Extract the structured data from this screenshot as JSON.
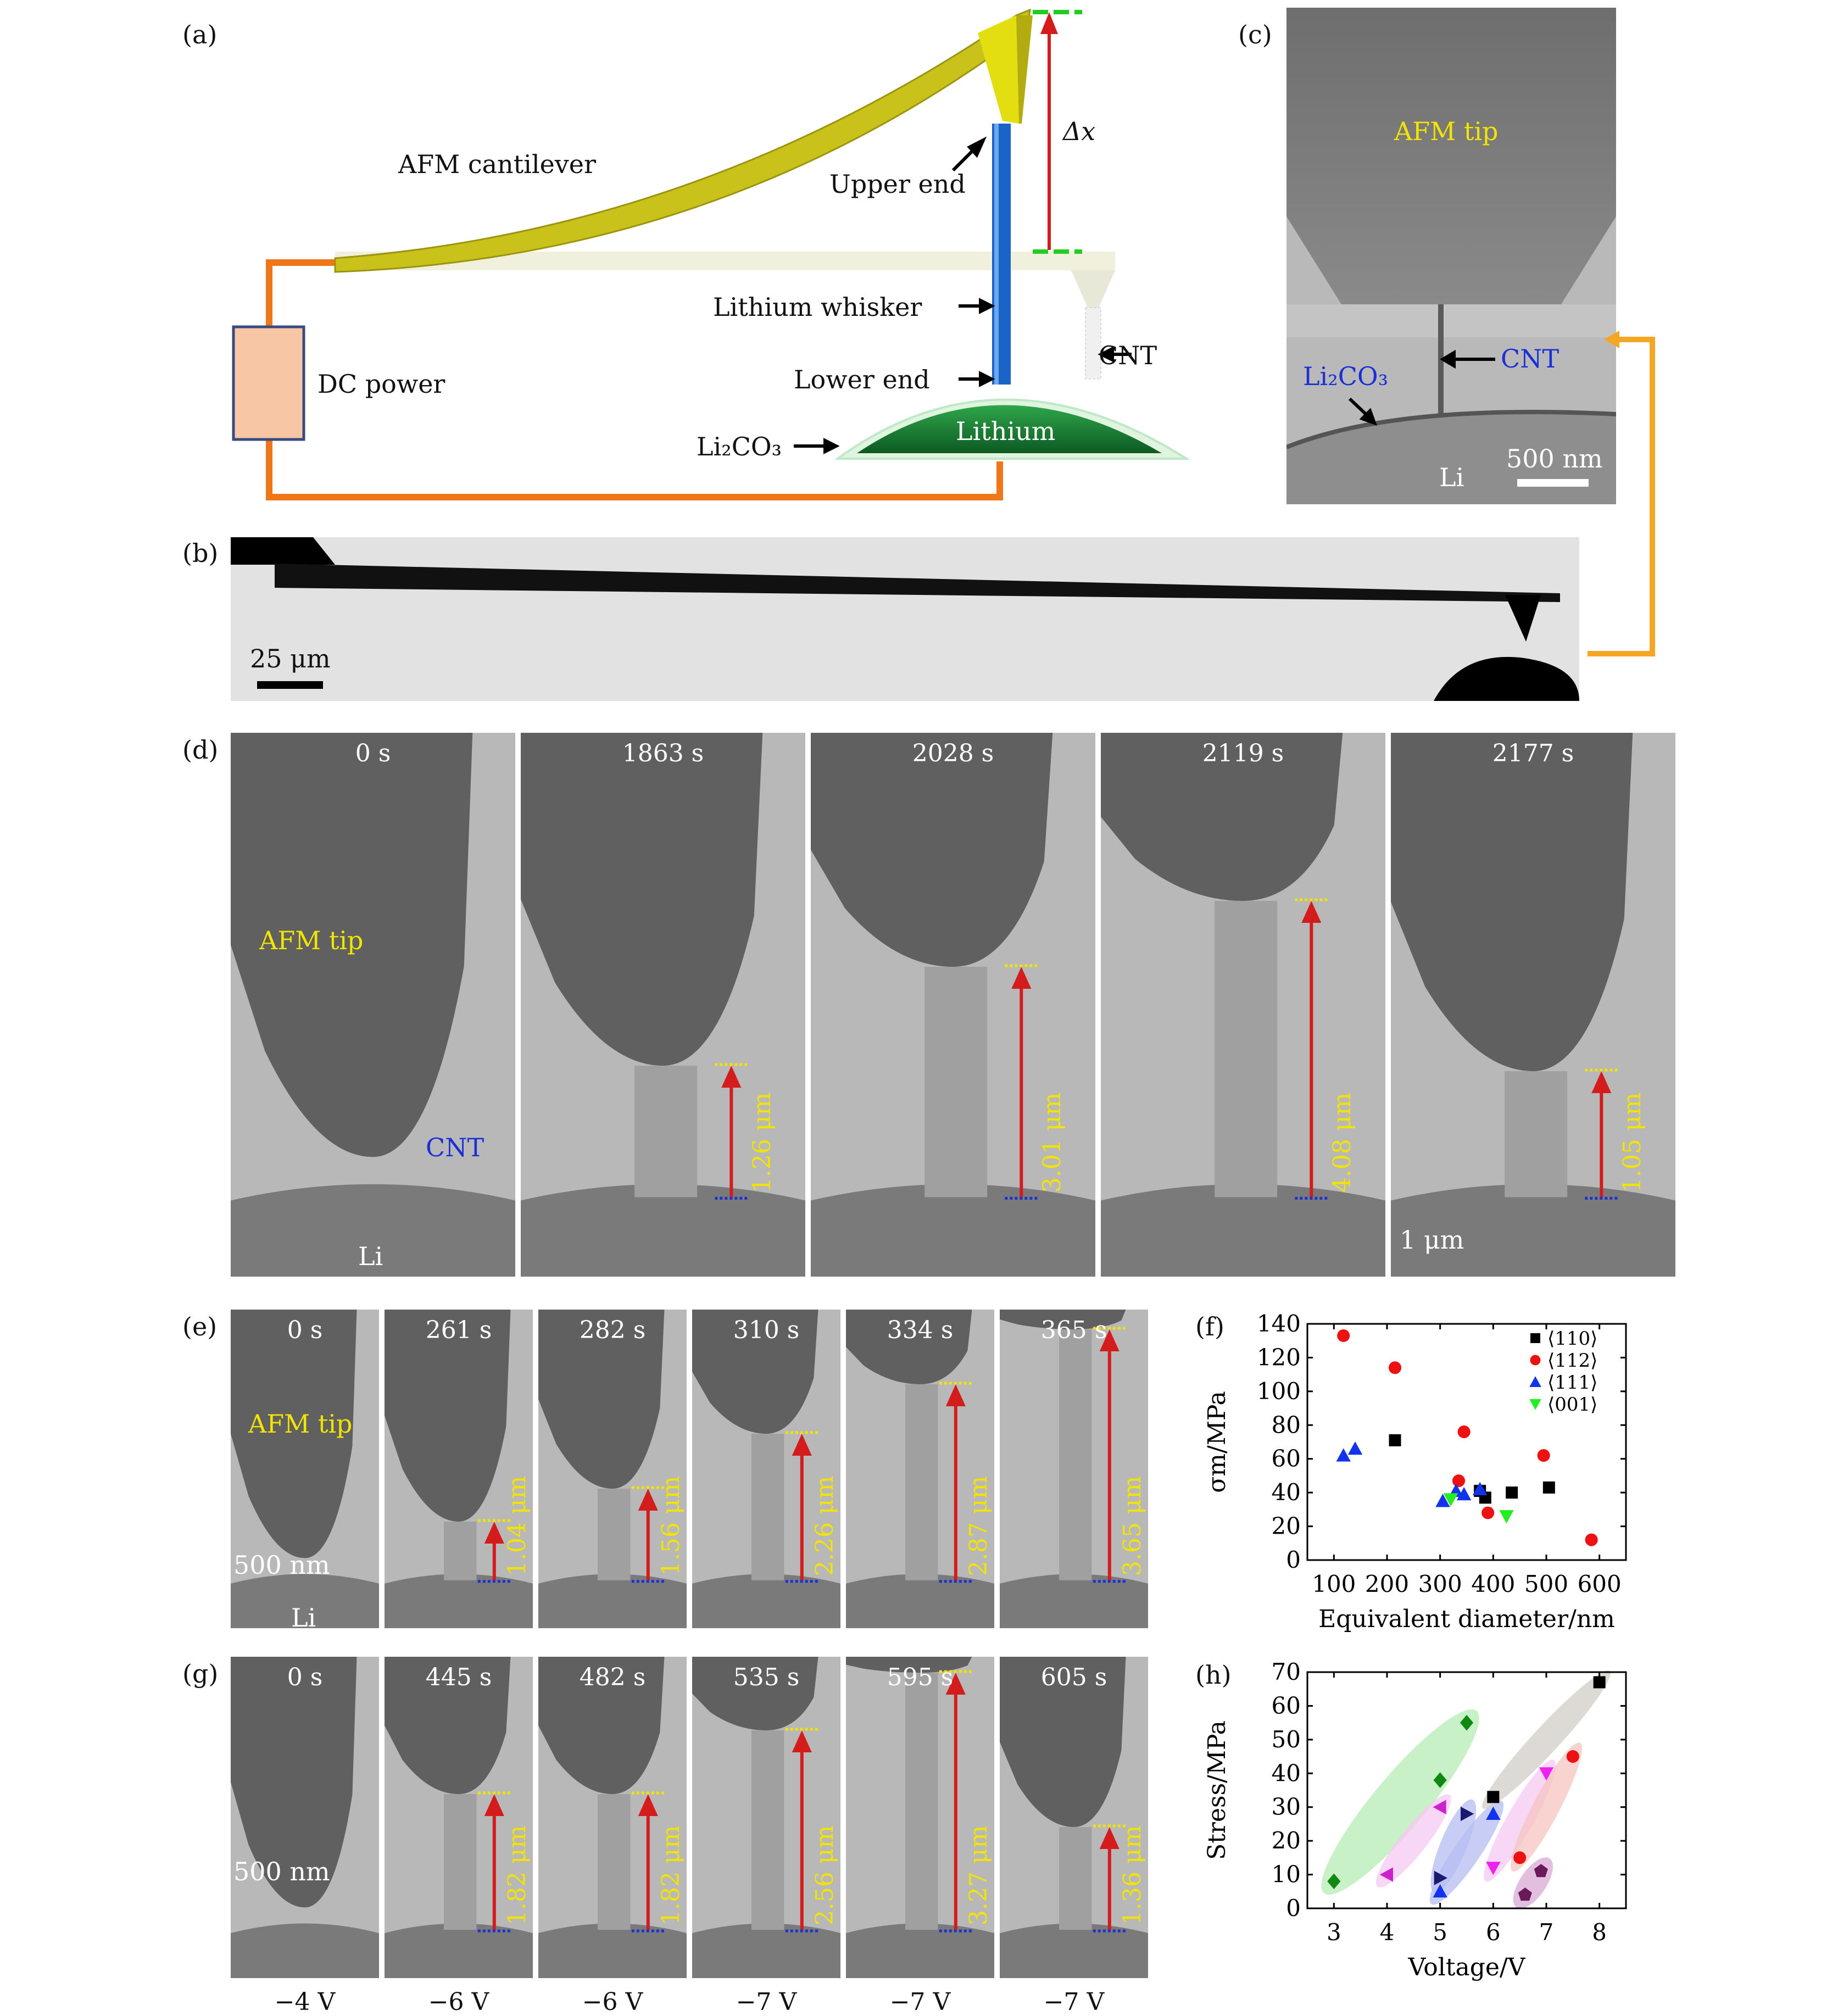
{
  "panels": {
    "a": {
      "label": "(a)",
      "cantilever": "AFM cantilever",
      "upper_end": "Upper end",
      "delta_x": "Δx",
      "whisker": "Lithium whisker",
      "cnt": "CNT",
      "lower_end": "Lower end",
      "dc_power": "DC power",
      "li2co3": "Li₂CO₃",
      "lithium": "Lithium"
    },
    "b": {
      "label": "(b)",
      "scale": "25 μm"
    },
    "c": {
      "label": "(c)",
      "afm_tip": "AFM tip",
      "cnt": "CNT",
      "li2co3": "Li₂CO₃",
      "li": "Li",
      "scale": "500 nm"
    },
    "d": {
      "label": "(d)",
      "afm_tip": "AFM tip",
      "cnt": "CNT",
      "li": "Li",
      "scale": "1 μm",
      "frames": [
        {
          "time": "0 s",
          "length": ""
        },
        {
          "time": "1863 s",
          "length": "1.26 μm"
        },
        {
          "time": "2028 s",
          "length": "3.01 μm"
        },
        {
          "time": "2119 s",
          "length": "4.08 μm"
        },
        {
          "time": "2177 s",
          "length": "1.05 μm"
        }
      ]
    },
    "e": {
      "label": "(e)",
      "afm_tip": "AFM tip",
      "scale": "500 nm",
      "li": "Li",
      "frames": [
        {
          "time": "0 s",
          "length": ""
        },
        {
          "time": "261 s",
          "length": "1.04 μm"
        },
        {
          "time": "282 s",
          "length": "1.56 μm"
        },
        {
          "time": "310 s",
          "length": "2.26 μm"
        },
        {
          "time": "334 s",
          "length": "2.87 μm"
        },
        {
          "time": "365 s",
          "length": "3.65 μm"
        }
      ]
    },
    "g": {
      "label": "(g)",
      "scale": "500 nm",
      "frames": [
        {
          "time": "0 s",
          "length": "",
          "voltage": "−4 V"
        },
        {
          "time": "445 s",
          "length": "1.82 μm",
          "voltage": "−6 V"
        },
        {
          "time": "482 s",
          "length": "1.82 μm",
          "voltage": "−6 V"
        },
        {
          "time": "535 s",
          "length": "2.56 μm",
          "voltage": "−7 V"
        },
        {
          "time": "595 s",
          "length": "3.27 μm",
          "voltage": "−7 V"
        },
        {
          "time": "605 s",
          "length": "1.36 μm",
          "voltage": "−7 V"
        }
      ]
    },
    "f": {
      "label": "(f)"
    },
    "h": {
      "label": "(h)"
    }
  },
  "chart_data": [
    {
      "type": "scatter",
      "title": "",
      "xlabel": "Equivalent diameter/nm",
      "ylabel": "σm/MPa",
      "xlim": [
        50,
        650
      ],
      "ylim": [
        0,
        140
      ],
      "xticks": [
        "100",
        "200",
        "300",
        "400",
        "500",
        "600"
      ],
      "yticks": [
        "0",
        "20",
        "40",
        "60",
        "80",
        "100",
        "120",
        "140"
      ],
      "legend": "top-right",
      "series": [
        {
          "name": "⟨110⟩",
          "color": "#000000",
          "marker": "square",
          "x": [
            215,
            375,
            385,
            435,
            505
          ],
          "y": [
            71,
            41,
            37,
            40,
            43
          ]
        },
        {
          "name": "⟨112⟩",
          "color": "#ee1111",
          "marker": "circle",
          "x": [
            118,
            215,
            335,
            345,
            390,
            495,
            585
          ],
          "y": [
            133,
            114,
            47,
            76,
            28,
            62,
            12
          ]
        },
        {
          "name": "⟨111⟩",
          "color": "#1133ee",
          "marker": "triangle-up",
          "x": [
            118,
            140,
            305,
            330,
            345,
            375
          ],
          "y": [
            62,
            66,
            35,
            41,
            39,
            42
          ]
        },
        {
          "name": "⟨001⟩",
          "color": "#22ee22",
          "marker": "triangle-down",
          "x": [
            320,
            425
          ],
          "y": [
            36,
            26
          ]
        }
      ]
    },
    {
      "type": "scatter",
      "title": "",
      "xlabel": "Voltage/V",
      "ylabel": "Stress/MPa",
      "xlim": [
        2.5,
        8.5
      ],
      "ylim": [
        0,
        70
      ],
      "xticks": [
        "3",
        "4",
        "5",
        "6",
        "7",
        "8"
      ],
      "yticks": [
        "0",
        "10",
        "20",
        "30",
        "40",
        "50",
        "60",
        "70"
      ],
      "grid": false,
      "series": [
        {
          "color": "#118811",
          "fill": "#b6ecb6",
          "marker": "diamond",
          "x": [
            3,
            5,
            5.5
          ],
          "y": [
            8,
            38,
            55
          ]
        },
        {
          "color": "#cc22cc",
          "fill": "#f6c8f2",
          "marker": "triangle-left",
          "x": [
            4,
            5
          ],
          "y": [
            10,
            30
          ]
        },
        {
          "color": "#1133ee",
          "fill": "#b6bcf2",
          "marker": "triangle-up",
          "x": [
            5,
            6
          ],
          "y": [
            5,
            28
          ]
        },
        {
          "color": "#1a1a6e",
          "fill": "#b6bcf2",
          "marker": "triangle-right",
          "x": [
            5,
            5.5
          ],
          "y": [
            9,
            28
          ]
        },
        {
          "color": "#000000",
          "fill": "#d2cdc8",
          "marker": "square",
          "x": [
            6,
            8
          ],
          "y": [
            33,
            67
          ]
        },
        {
          "color": "#ee22ee",
          "fill": "#f6c8f2",
          "marker": "triangle-down",
          "x": [
            6,
            7
          ],
          "y": [
            12,
            40
          ]
        },
        {
          "color": "#ee1111",
          "fill": "#f6c4c0",
          "marker": "circle",
          "x": [
            6.5,
            7.5
          ],
          "y": [
            15,
            45
          ]
        },
        {
          "color": "#6a1a5a",
          "fill": "#d8a8d4",
          "marker": "pentagon",
          "x": [
            6.6,
            6.9
          ],
          "y": [
            4,
            11
          ]
        }
      ]
    }
  ]
}
